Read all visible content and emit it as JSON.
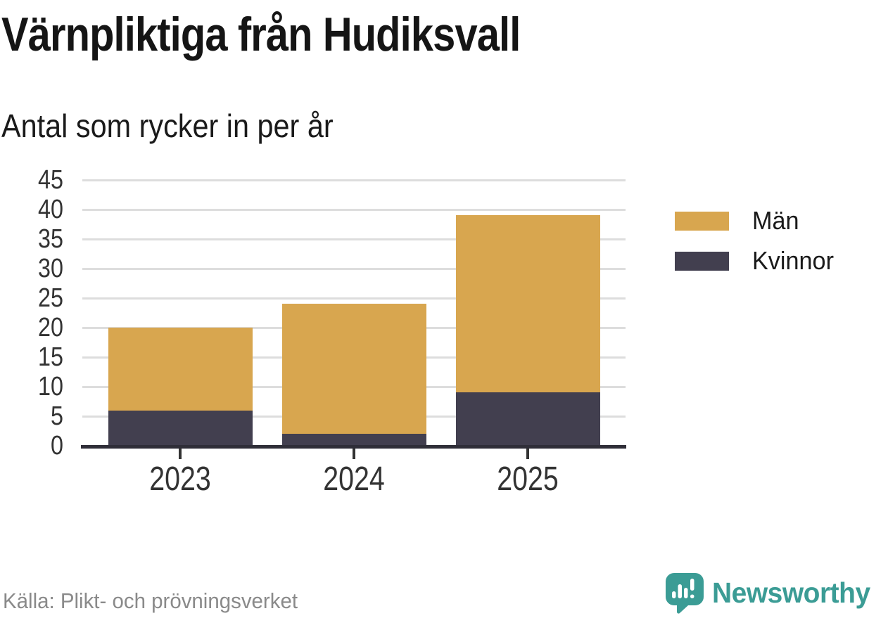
{
  "chart_data": {
    "type": "bar",
    "stacked": true,
    "title": "Värnpliktiga från Hudiksvall",
    "subtitle": "Antal som rycker in per år",
    "categories": [
      "2023",
      "2024",
      "2025"
    ],
    "series": [
      {
        "name": "Kvinnor",
        "color": "#423F4F",
        "values": [
          6,
          2,
          9
        ]
      },
      {
        "name": "Män",
        "color": "#D8A64F",
        "values": [
          14,
          22,
          30
        ]
      }
    ],
    "stack_totals": [
      20,
      24,
      39
    ],
    "xlabel": "",
    "ylabel": "",
    "ylim": [
      0,
      45
    ],
    "ytick_step": 5,
    "grid": true,
    "legend": {
      "position": "right",
      "items": [
        "Män",
        "Kvinnor"
      ]
    }
  },
  "source": "Källa: Plikt- och prövningsverket",
  "brand": {
    "name": "Newsworthy",
    "icon": "bar-chart-speech-bubble-icon",
    "color": "#3B9C95"
  },
  "palette": {
    "men": "#D8A64F",
    "women": "#423F4F",
    "grid": "#DDDDDD",
    "axis": "#2F2E38",
    "tick_text": "#333333",
    "muted_text": "#8A8A8A"
  }
}
